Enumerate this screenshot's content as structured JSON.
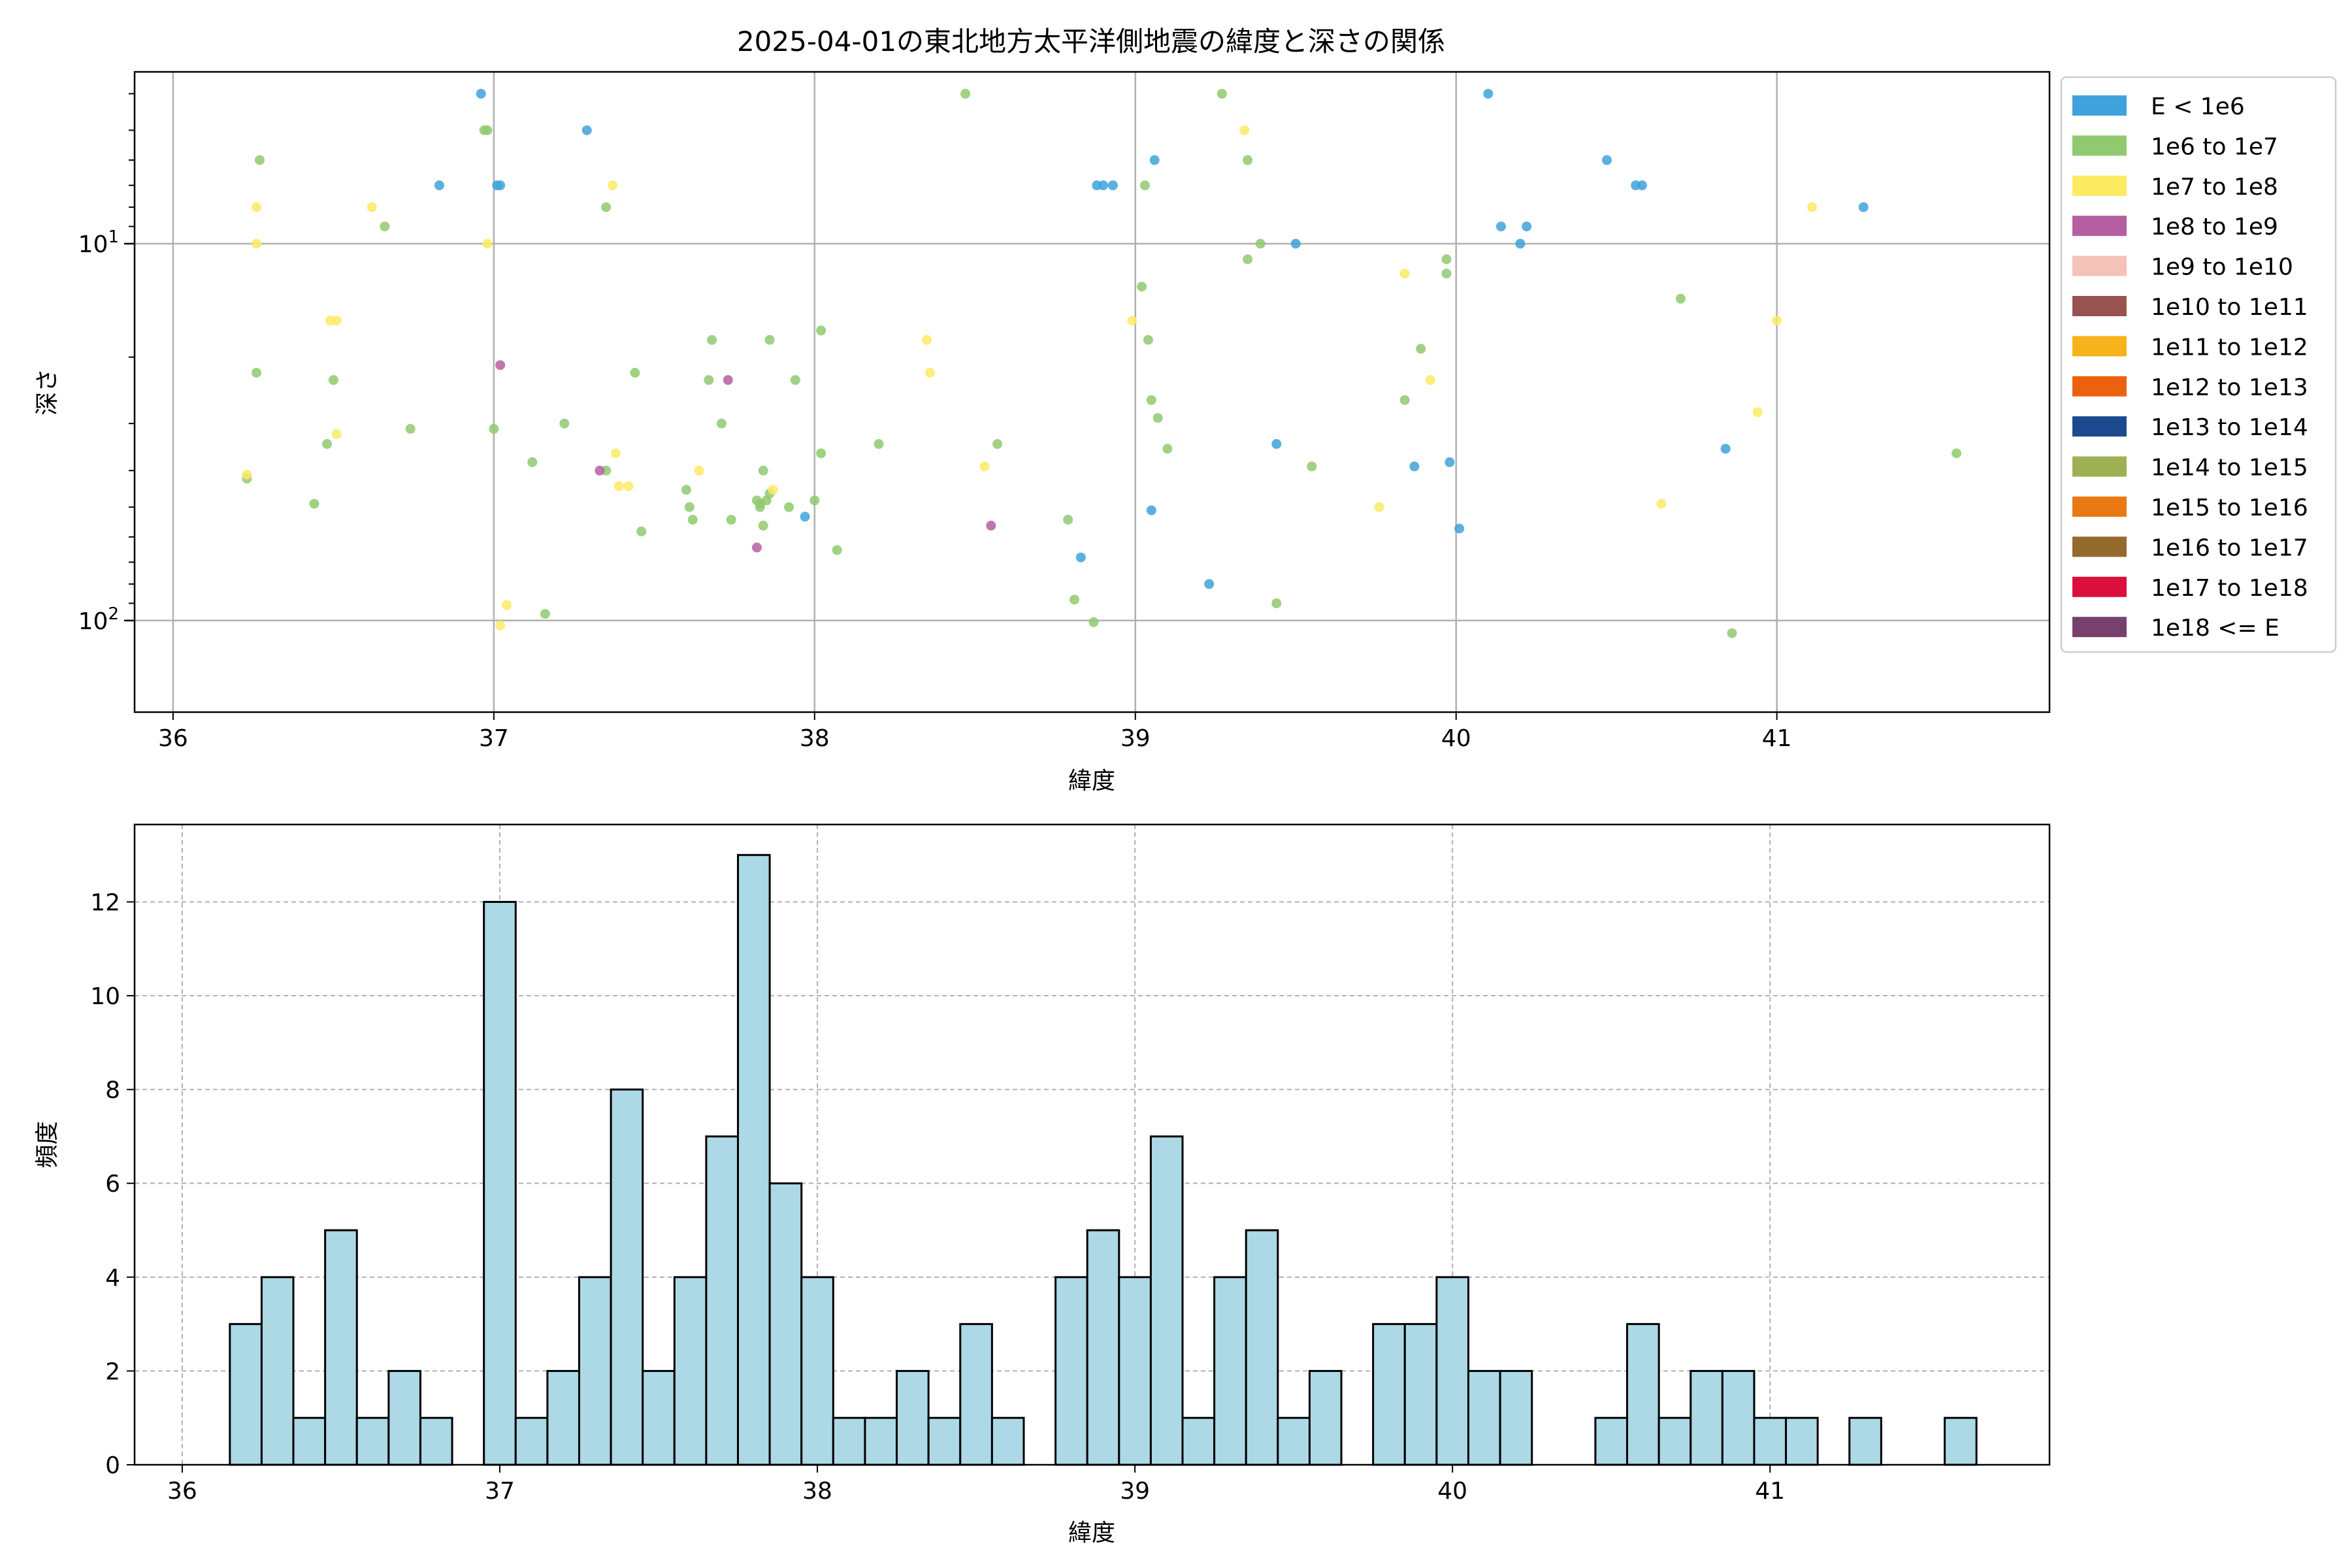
{
  "chart_data": [
    {
      "type": "scatter",
      "title": "2025-04-01の東北地方太平洋側地震の緯度と深さの関係",
      "xlabel": "緯度",
      "ylabel": "深さ",
      "xlim": [
        35.88,
        41.85
      ],
      "ylim": [
        175,
        3.5
      ],
      "yscale": "log",
      "y_inverted": true,
      "grid": true,
      "x_ticks": [
        36,
        37,
        38,
        39,
        40,
        41
      ],
      "y_ticks": [
        {
          "value": 10,
          "base": "10",
          "exp": "1"
        },
        {
          "value": 100,
          "base": "10",
          "exp": "2"
        }
      ],
      "legend_position": "outside-right",
      "series": [
        {
          "name": "E < 1e6",
          "color": "#3fa2db",
          "points": [
            [
              36.96,
              4.0
            ],
            [
              36.83,
              7.0
            ],
            [
              37.01,
              7.0
            ],
            [
              37.02,
              7.0
            ],
            [
              37.29,
              5.0
            ],
            [
              38.88,
              7.0
            ],
            [
              38.9,
              7.0
            ],
            [
              38.93,
              7.0
            ],
            [
              39.06,
              6.0
            ],
            [
              39.05,
              51.0
            ],
            [
              39.5,
              10.0
            ],
            [
              40.1,
              4.0
            ],
            [
              40.14,
              9.0
            ],
            [
              40.22,
              9.0
            ],
            [
              40.2,
              10.0
            ],
            [
              40.47,
              6.0
            ],
            [
              40.56,
              7.0
            ],
            [
              40.58,
              7.0
            ],
            [
              41.27,
              8.0
            ],
            [
              37.97,
              53.0
            ],
            [
              38.83,
              68.0
            ],
            [
              39.23,
              80.0
            ],
            [
              39.44,
              34.0
            ],
            [
              39.87,
              39.0
            ],
            [
              39.98,
              38.0
            ],
            [
              40.01,
              57.0
            ],
            [
              40.84,
              35.0
            ]
          ]
        },
        {
          "name": "1e6 to 1e7",
          "color": "#90c96f",
          "points": [
            [
              36.27,
              6.0
            ],
            [
              36.66,
              9.0
            ],
            [
              36.97,
              5.0
            ],
            [
              36.98,
              5.0
            ],
            [
              37.35,
              8.0
            ],
            [
              36.26,
              22.0
            ],
            [
              36.5,
              23.0
            ],
            [
              36.48,
              34.0
            ],
            [
              36.74,
              31.0
            ],
            [
              36.44,
              49.0
            ],
            [
              36.23,
              42.0
            ],
            [
              37.0,
              31.0
            ],
            [
              37.12,
              38.0
            ],
            [
              37.22,
              30.0
            ],
            [
              37.16,
              96.0
            ],
            [
              37.35,
              40.0
            ],
            [
              37.44,
              22.0
            ],
            [
              37.46,
              58.0
            ],
            [
              37.6,
              45.0
            ],
            [
              37.61,
              50.0
            ],
            [
              37.62,
              54.0
            ],
            [
              37.68,
              18.0
            ],
            [
              37.67,
              23.0
            ],
            [
              37.71,
              30.0
            ],
            [
              37.74,
              54.0
            ],
            [
              37.82,
              48.0
            ],
            [
              37.83,
              50.0
            ],
            [
              37.84,
              40.0
            ],
            [
              37.86,
              18.0
            ],
            [
              37.85,
              48.0
            ],
            [
              37.86,
              46.0
            ],
            [
              37.92,
              50.0
            ],
            [
              37.94,
              23.0
            ],
            [
              38.0,
              48.0
            ],
            [
              38.02,
              17.0
            ],
            [
              38.02,
              36.0
            ],
            [
              38.07,
              65.0
            ],
            [
              38.2,
              34.0
            ],
            [
              38.47,
              4.0
            ],
            [
              38.57,
              34.0
            ],
            [
              38.79,
              54.0
            ],
            [
              38.81,
              88.0
            ],
            [
              38.87,
              101.0
            ],
            [
              39.03,
              7.0
            ],
            [
              39.02,
              13.0
            ],
            [
              39.04,
              18.0
            ],
            [
              39.05,
              26.0
            ],
            [
              39.07,
              29.0
            ],
            [
              39.1,
              35.0
            ],
            [
              39.27,
              4.0
            ],
            [
              39.35,
              6.0
            ],
            [
              39.35,
              11.0
            ],
            [
              39.39,
              10.0
            ],
            [
              39.44,
              90.0
            ],
            [
              39.55,
              39.0
            ],
            [
              39.84,
              26.0
            ],
            [
              39.89,
              19.0
            ],
            [
              39.97,
              11.0
            ],
            [
              39.97,
              12.0
            ],
            [
              40.7,
              14.0
            ],
            [
              40.86,
              108.0
            ],
            [
              41.56,
              36.0
            ],
            [
              37.84,
              56.0
            ],
            [
              37.83,
              49.0
            ]
          ]
        },
        {
          "name": "1e7 to 1e8",
          "color": "#fdea63",
          "points": [
            [
              36.26,
              8.0
            ],
            [
              36.26,
              10.0
            ],
            [
              36.49,
              16.0
            ],
            [
              36.51,
              16.0
            ],
            [
              36.62,
              8.0
            ],
            [
              36.98,
              10.0
            ],
            [
              36.51,
              32.0
            ],
            [
              36.23,
              41.0
            ],
            [
              37.02,
              103.0
            ],
            [
              37.04,
              91.0
            ],
            [
              37.37,
              7.0
            ],
            [
              37.38,
              36.0
            ],
            [
              37.39,
              44.0
            ],
            [
              37.42,
              44.0
            ],
            [
              37.64,
              40.0
            ],
            [
              37.87,
              45.0
            ],
            [
              38.35,
              18.0
            ],
            [
              38.36,
              22.0
            ],
            [
              38.53,
              39.0
            ],
            [
              38.99,
              16.0
            ],
            [
              39.34,
              5.0
            ],
            [
              39.76,
              50.0
            ],
            [
              39.84,
              12.0
            ],
            [
              39.92,
              23.0
            ],
            [
              40.64,
              49.0
            ],
            [
              40.94,
              28.0
            ],
            [
              41.0,
              16.0
            ],
            [
              41.11,
              8.0
            ]
          ]
        },
        {
          "name": "1e8 to 1e9",
          "color": "#b55ea2",
          "points": [
            [
              37.02,
              21.0
            ],
            [
              37.33,
              40.0
            ],
            [
              37.73,
              23.0
            ],
            [
              37.82,
              64.0
            ],
            [
              38.55,
              56.0
            ]
          ]
        }
      ],
      "legend_only": [
        {
          "name": "1e9 to 1e10",
          "color": "#f4c2b8"
        },
        {
          "name": "1e10 to 1e11",
          "color": "#985350"
        },
        {
          "name": "1e11 to 1e12",
          "color": "#f6b31b"
        },
        {
          "name": "1e12 to 1e13",
          "color": "#ec6110"
        },
        {
          "name": "1e13 to 1e14",
          "color": "#1d4a8e"
        },
        {
          "name": "1e14 to 1e15",
          "color": "#9db052"
        },
        {
          "name": "1e15 to 1e16",
          "color": "#ea7914"
        },
        {
          "name": "1e16 to 1e17",
          "color": "#946a2d"
        },
        {
          "name": "1e17 to 1e18",
          "color": "#dc0f3c"
        },
        {
          "name": "1e18 <= E",
          "color": "#76416c"
        }
      ]
    },
    {
      "type": "bar",
      "xlabel": "緯度",
      "ylabel": "頻度",
      "xlim": [
        35.85,
        41.88
      ],
      "ylim": [
        0,
        13.65
      ],
      "grid": true,
      "x_ticks": [
        36,
        37,
        38,
        39,
        40,
        41
      ],
      "y_ticks": [
        0,
        2,
        4,
        6,
        8,
        10,
        12
      ],
      "bar_color": "#add8e6",
      "bin_start": 36.15,
      "bin_width": 0.1,
      "values": [
        3,
        4,
        1,
        5,
        1,
        2,
        1,
        0,
        12,
        1,
        2,
        4,
        8,
        2,
        4,
        7,
        13,
        6,
        4,
        1,
        1,
        2,
        1,
        3,
        1,
        0,
        4,
        5,
        4,
        7,
        1,
        4,
        5,
        1,
        2,
        0,
        3,
        3,
        4,
        2,
        2,
        0,
        0,
        1,
        3,
        1,
        2,
        2,
        1,
        1,
        0,
        1,
        0,
        0,
        1
      ]
    }
  ]
}
